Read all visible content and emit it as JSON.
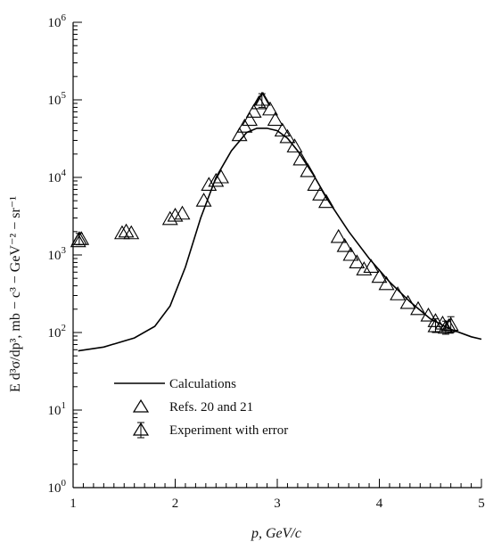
{
  "chart_data": {
    "type": "scatter",
    "title": "",
    "xlabel": "p, GeV/c",
    "ylabel": "E d³σ/dp³, mb − c³ − GeV⁻² − sr⁻¹",
    "xlim": [
      1,
      5
    ],
    "ylim": [
      1,
      1000000
    ],
    "yscale": "log",
    "grid": false,
    "legend_position": "bottom-left",
    "x_ticks": [
      1,
      2,
      3,
      4,
      5
    ],
    "y_tick_labels": [
      {
        "exp": 0,
        "label": "10",
        "sup": "0"
      },
      {
        "exp": 1,
        "label": "10",
        "sup": "1"
      },
      {
        "exp": 2,
        "label": "10",
        "sup": "2"
      },
      {
        "exp": 3,
        "label": "10",
        "sup": "3"
      },
      {
        "exp": 4,
        "label": "10",
        "sup": "4"
      },
      {
        "exp": 5,
        "label": "10",
        "sup": "5"
      },
      {
        "exp": 6,
        "label": "10",
        "sup": "6"
      }
    ],
    "series": [
      {
        "name": "Calculations",
        "type": "line",
        "color": "#000000",
        "x": [
          1.05,
          1.3,
          1.6,
          1.8,
          1.95,
          2.1,
          2.25,
          2.4,
          2.55,
          2.7,
          2.8,
          2.9,
          3.0,
          3.1,
          3.2,
          3.35,
          3.5,
          3.7,
          3.9,
          4.1,
          4.3,
          4.5,
          4.7,
          4.9,
          5.0
        ],
        "y": [
          58,
          65,
          85,
          120,
          220,
          700,
          3000,
          10000,
          22000,
          38000,
          43000,
          43000,
          40000,
          32000,
          22000,
          11000,
          5000,
          2000,
          900,
          450,
          250,
          150,
          110,
          88,
          82
        ]
      },
      {
        "name": "Refs. 20 and 21",
        "type": "scatter",
        "marker": "triangle-open",
        "x": [
          1.05,
          1.08,
          1.48,
          1.52,
          1.57,
          1.95,
          2.0,
          2.07,
          2.28,
          2.33,
          2.4,
          2.45,
          2.63,
          2.68,
          2.73,
          2.77,
          2.82,
          2.86,
          2.93,
          2.98,
          3.05,
          3.1,
          3.17,
          3.23,
          3.3,
          3.37,
          3.42,
          3.48,
          3.6,
          3.66,
          3.72,
          3.78,
          3.85,
          3.92,
          4.0,
          4.07,
          4.18,
          4.28,
          4.38,
          4.48,
          4.55,
          4.62,
          4.68
        ],
        "y": [
          1500,
          1600,
          1900,
          2000,
          1900,
          2900,
          3200,
          3400,
          5000,
          8000,
          9000,
          10000,
          35000,
          45000,
          55000,
          70000,
          90000,
          100000,
          75000,
          55000,
          40000,
          33000,
          25000,
          17000,
          12000,
          8000,
          6000,
          4800,
          1700,
          1300,
          1000,
          800,
          650,
          700,
          520,
          420,
          310,
          240,
          200,
          165,
          140,
          130,
          120
        ]
      },
      {
        "name": "Experiment with error",
        "type": "scatter",
        "marker": "triangle-open-errorbar",
        "x": [
          1.06,
          2.85,
          4.55,
          4.65,
          4.7
        ],
        "y": [
          1600,
          100000,
          120,
          115,
          125
        ],
        "err_low": [
          1350,
          80000,
          100,
          95,
          100
        ],
        "err_high": [
          1900,
          120000,
          150,
          140,
          160
        ]
      }
    ]
  }
}
